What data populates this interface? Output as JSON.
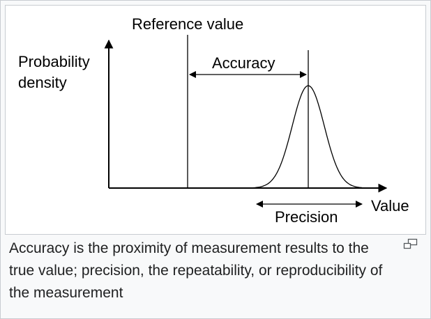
{
  "figure": {
    "reference_label": "Reference value",
    "accuracy_label": "Accuracy",
    "y_axis_label_line1": "Probability",
    "y_axis_label_line2": "density",
    "x_axis_label": "Value",
    "precision_label": "Precision"
  },
  "caption": {
    "text": "Accuracy is the proximity of measurement results to the true value; precision, the repeatability, or reproducibility of the measurement"
  },
  "enlarge": {
    "icon": "enlarge-icon"
  }
}
